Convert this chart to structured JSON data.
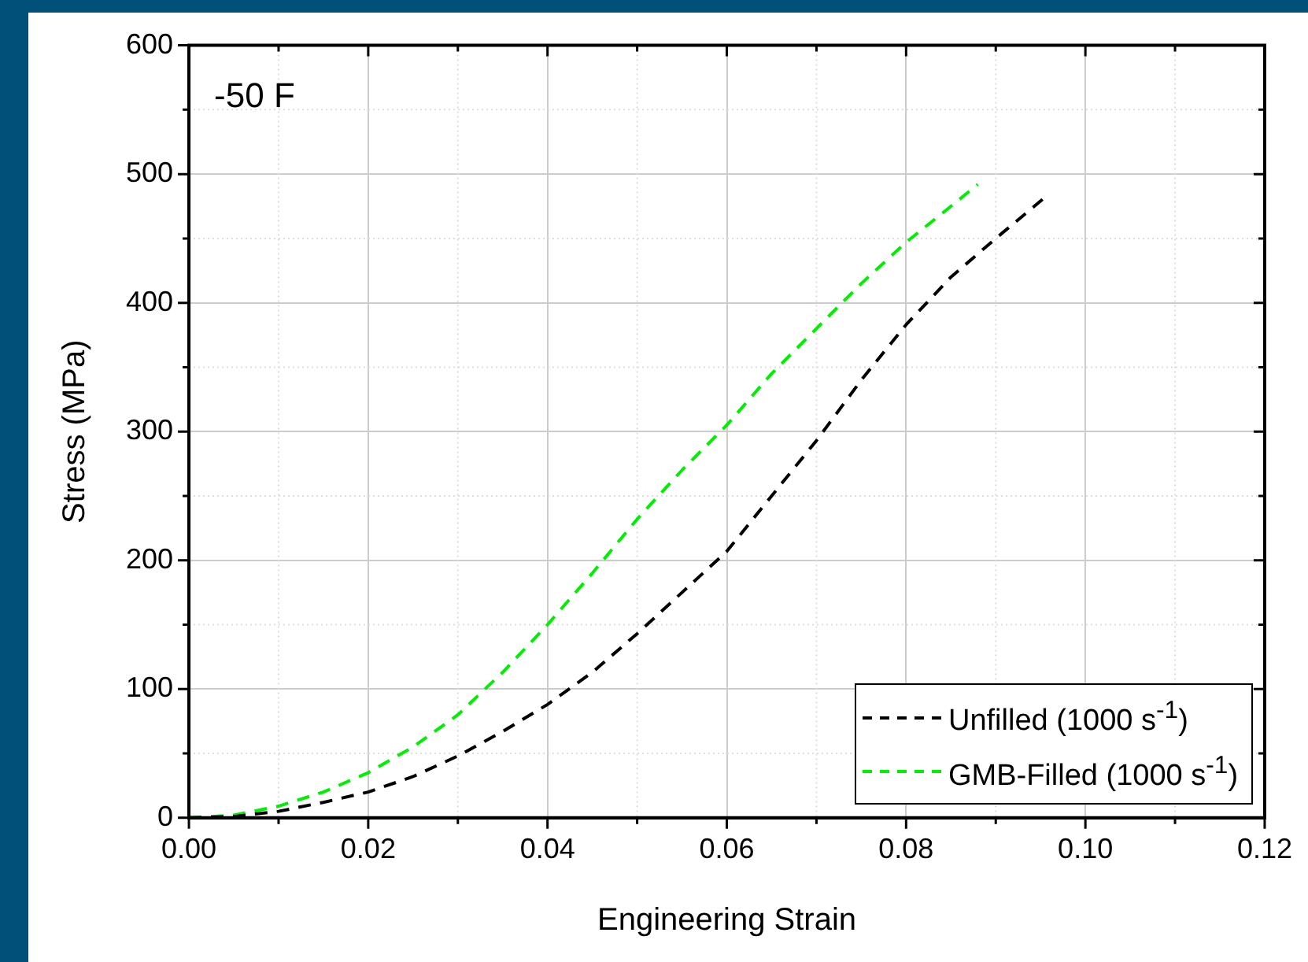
{
  "chart_data": {
    "type": "line",
    "xlabel": "Engineering Strain",
    "ylabel": "Stress (MPa)",
    "annotations": [
      "-50 F"
    ],
    "xlim": [
      0,
      0.12
    ],
    "ylim": [
      0,
      600
    ],
    "xticks": [
      {
        "value": 0,
        "label": "0.00"
      },
      {
        "value": 0.02,
        "label": "0.02"
      },
      {
        "value": 0.04,
        "label": "0.04"
      },
      {
        "value": 0.06,
        "label": "0.06"
      },
      {
        "value": 0.08,
        "label": "0.08"
      },
      {
        "value": 0.1,
        "label": "0.10"
      },
      {
        "value": 0.12,
        "label": "0.12"
      }
    ],
    "yticks": [
      0,
      100,
      200,
      300,
      400,
      500,
      600
    ],
    "grid": true,
    "legend": "bottom right",
    "line_style": "dashed",
    "marker": "none",
    "series": [
      {
        "name": "Unfilled (1000 s$^{-1}$)",
        "color": "#000000",
        "x": [
          0,
          0.005,
          0.01,
          0.015,
          0.02,
          0.025,
          0.03,
          0.035,
          0.04,
          0.045,
          0.05,
          0.055,
          0.06,
          0.065,
          0.07,
          0.075,
          0.08,
          0.085,
          0.09,
          0.0955
        ],
        "values": [
          0,
          1,
          5,
          12,
          20,
          32,
          48,
          67,
          88,
          113,
          143,
          175,
          207,
          250,
          293,
          340,
          383,
          420,
          450,
          482
        ]
      },
      {
        "name": "GMB-Filled (1000 s$^{-1}$)",
        "color": "#00ee00",
        "x": [
          0,
          0.005,
          0.01,
          0.015,
          0.02,
          0.025,
          0.03,
          0.035,
          0.04,
          0.045,
          0.05,
          0.055,
          0.06,
          0.065,
          0.07,
          0.075,
          0.08,
          0.085,
          0.088
        ],
        "values": [
          0,
          2,
          9,
          20,
          35,
          55,
          80,
          113,
          150,
          190,
          232,
          270,
          305,
          345,
          380,
          415,
          447,
          475,
          492
        ]
      }
    ]
  }
}
